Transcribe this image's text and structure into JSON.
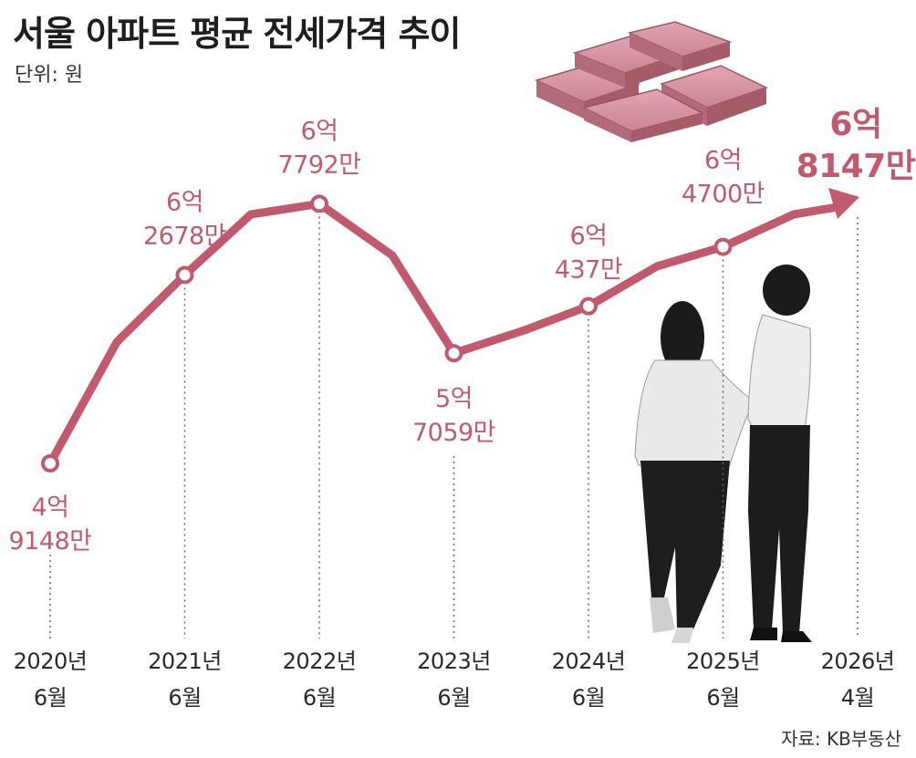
{
  "title": "서울 아파트 평균 전세가격 추이",
  "unit_label": "단위: 원",
  "source": "자료: KB부동산",
  "colors": {
    "accent": "#c05a6c",
    "text": "#222222",
    "guide": "#666666"
  },
  "chart_data": {
    "type": "line",
    "title": "서울 아파트 평균 전세가격 추이",
    "unit": "원",
    "categories": [
      "2020년 6월",
      "2021년 6월",
      "2022년 6월",
      "2023년 6월",
      "2024년 6월",
      "2025년 6월",
      "2026년 4월"
    ],
    "tick_labels": [
      [
        "2020년",
        "6월"
      ],
      [
        "2021년",
        "6월"
      ],
      [
        "2022년",
        "6월"
      ],
      [
        "2023년",
        "6월"
      ],
      [
        "2024년",
        "6월"
      ],
      [
        "2025년",
        "6월"
      ],
      [
        "2026년",
        "4월"
      ]
    ],
    "values": [
      491480000,
      626780000,
      677920000,
      570590000,
      604370000,
      647000000,
      681470000
    ],
    "value_labels": [
      [
        "4억",
        "9148만"
      ],
      [
        "6억",
        "2678만"
      ],
      [
        "6억",
        "7792만"
      ],
      [
        "5억",
        "7059만"
      ],
      [
        "6억",
        "437만"
      ],
      [
        "6억",
        "4700만"
      ],
      [
        "6억",
        "8147만"
      ]
    ],
    "series": [
      {
        "values": [
          491480000,
          626780000,
          677920000,
          570590000,
          604370000,
          647000000,
          681470000
        ]
      }
    ],
    "last_point_is_arrow": true
  }
}
